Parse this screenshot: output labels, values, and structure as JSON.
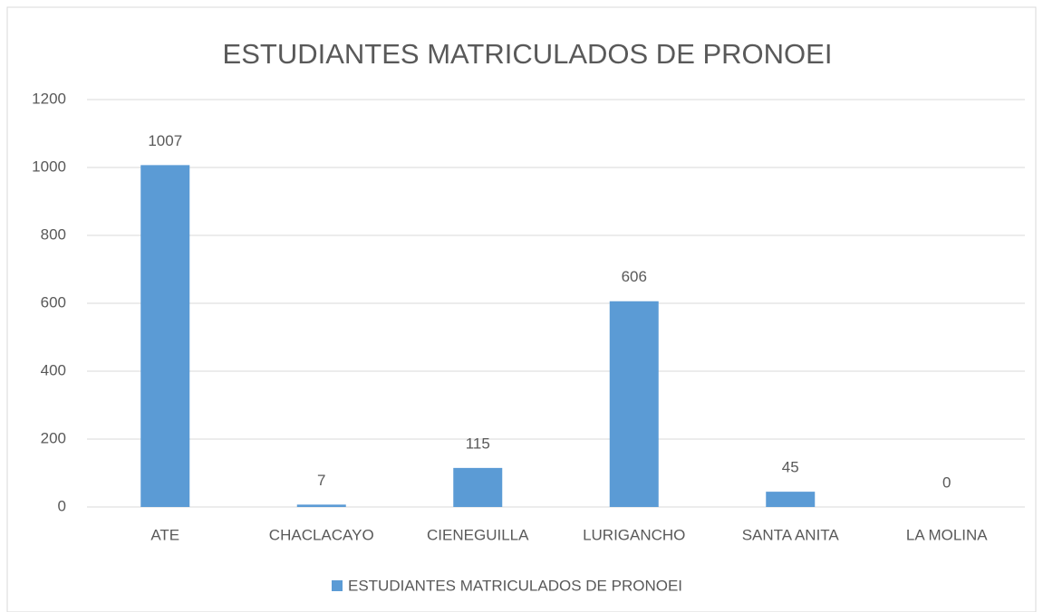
{
  "chart_data": {
    "type": "bar",
    "title": "ESTUDIANTES MATRICULADOS DE PRONOEI",
    "categories": [
      "ATE",
      "CHACLACAYO",
      "CIENEGUILLA",
      "LURIGANCHO",
      "SANTA ANITA",
      "LA MOLINA"
    ],
    "series": [
      {
        "name": "ESTUDIANTES MATRICULADOS DE PRONOEI",
        "color": "#5b9bd5",
        "values": [
          1007,
          7,
          115,
          606,
          45,
          0
        ]
      }
    ],
    "ylim": [
      0,
      1200
    ],
    "yticks": [
      0,
      200,
      400,
      600,
      800,
      1000,
      1200
    ],
    "grid": true,
    "legend": "bottom"
  }
}
